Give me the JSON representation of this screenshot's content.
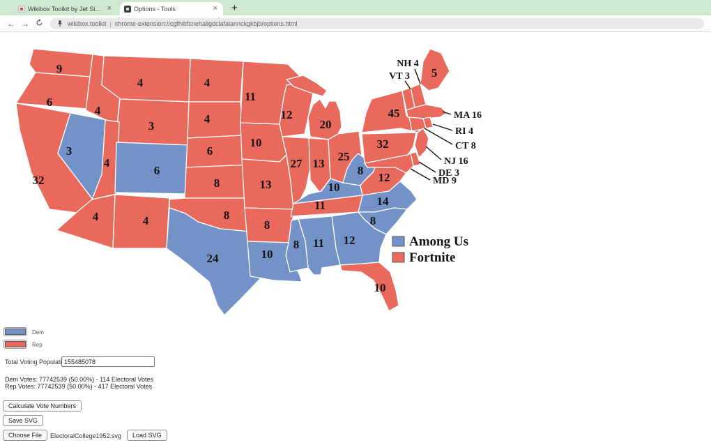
{
  "browser": {
    "tabs": [
      {
        "title": "Wikibox Toolkit by Jet Simon",
        "close": "×"
      },
      {
        "title": "Options - Tools",
        "close": "×"
      }
    ],
    "new_tab_label": "+",
    "url_prefix": "wikibox.toolkit",
    "url_separator": "|",
    "url": "chrome-extension://cgfhibfcnehallgdclafalannckgkbjb/options.html"
  },
  "map": {
    "colors": {
      "dem": "#7292c8",
      "rep": "#e96a5c"
    },
    "legend": {
      "dem_label": "Among Us",
      "rep_label": "Fortnite"
    },
    "states": [
      {
        "id": "WA",
        "ev": 9,
        "party": "rep"
      },
      {
        "id": "OR",
        "ev": 6,
        "party": "rep"
      },
      {
        "id": "CA",
        "ev": 32,
        "party": "rep"
      },
      {
        "id": "ID",
        "ev": 4,
        "party": "rep"
      },
      {
        "id": "NV",
        "ev": 3,
        "party": "dem"
      },
      {
        "id": "MT",
        "ev": 4,
        "party": "rep"
      },
      {
        "id": "WY",
        "ev": 3,
        "party": "rep"
      },
      {
        "id": "UT",
        "ev": 4,
        "party": "rep"
      },
      {
        "id": "CO",
        "ev": 6,
        "party": "dem"
      },
      {
        "id": "AZ",
        "ev": 4,
        "party": "rep"
      },
      {
        "id": "NM",
        "ev": 4,
        "party": "rep"
      },
      {
        "id": "ND",
        "ev": 4,
        "party": "rep"
      },
      {
        "id": "SD",
        "ev": 4,
        "party": "rep"
      },
      {
        "id": "NE",
        "ev": 6,
        "party": "rep"
      },
      {
        "id": "KS",
        "ev": 8,
        "party": "rep"
      },
      {
        "id": "OK",
        "ev": 8,
        "party": "rep"
      },
      {
        "id": "TX",
        "ev": 24,
        "party": "dem"
      },
      {
        "id": "MN",
        "ev": 11,
        "party": "rep"
      },
      {
        "id": "IA",
        "ev": 10,
        "party": "rep"
      },
      {
        "id": "MO",
        "ev": 13,
        "party": "rep"
      },
      {
        "id": "AR",
        "ev": 8,
        "party": "rep"
      },
      {
        "id": "LA",
        "ev": 10,
        "party": "dem"
      },
      {
        "id": "WI",
        "ev": 12,
        "party": "rep"
      },
      {
        "id": "IL",
        "ev": 27,
        "party": "rep"
      },
      {
        "id": "IN",
        "ev": 13,
        "party": "rep"
      },
      {
        "id": "MI",
        "ev": 20,
        "party": "rep"
      },
      {
        "id": "OH",
        "ev": 25,
        "party": "rep"
      },
      {
        "id": "KY",
        "ev": 10,
        "party": "dem"
      },
      {
        "id": "TN",
        "ev": 11,
        "party": "rep"
      },
      {
        "id": "WV",
        "ev": 8,
        "party": "dem"
      },
      {
        "id": "VA",
        "ev": 12,
        "party": "rep"
      },
      {
        "id": "NC",
        "ev": 14,
        "party": "dem"
      },
      {
        "id": "SC",
        "ev": 8,
        "party": "dem"
      },
      {
        "id": "GA",
        "ev": 12,
        "party": "dem"
      },
      {
        "id": "AL",
        "ev": 11,
        "party": "dem"
      },
      {
        "id": "MS",
        "ev": 8,
        "party": "dem"
      },
      {
        "id": "FL",
        "ev": 10,
        "party": "rep"
      },
      {
        "id": "PA",
        "ev": 32,
        "party": "rep"
      },
      {
        "id": "NY",
        "ev": 45,
        "party": "rep"
      },
      {
        "id": "ME",
        "ev": 5,
        "party": "rep"
      },
      {
        "id": "NH",
        "ev": 4,
        "party": "rep"
      },
      {
        "id": "VT",
        "ev": 3,
        "party": "rep"
      },
      {
        "id": "MA",
        "ev": 16,
        "party": "rep"
      },
      {
        "id": "RI",
        "ev": 4,
        "party": "rep"
      },
      {
        "id": "CT",
        "ev": 8,
        "party": "rep"
      },
      {
        "id": "NJ",
        "ev": 16,
        "party": "rep"
      },
      {
        "id": "DE",
        "ev": 3,
        "party": "rep"
      },
      {
        "id": "MD",
        "ev": 9,
        "party": "rep"
      }
    ]
  },
  "controls": {
    "dem_swatch_label": "Dem",
    "rep_swatch_label": "Rep",
    "population_label": "Total Voting Population:",
    "population_value": "155485078",
    "dem_votes_line": "Dem Votes: 77742539 (50.00%) - 114 Electoral Votes",
    "rep_votes_line": "Rep Votes: 77742539 (50.00%) - 417 Electoral Votes",
    "calculate_button": "Calculate Vote Numbers",
    "save_button": "Save SVG",
    "choose_file_button": "Choose File",
    "file_name": "ElectoralCollege1952.svg",
    "load_button": "Load SVG"
  }
}
